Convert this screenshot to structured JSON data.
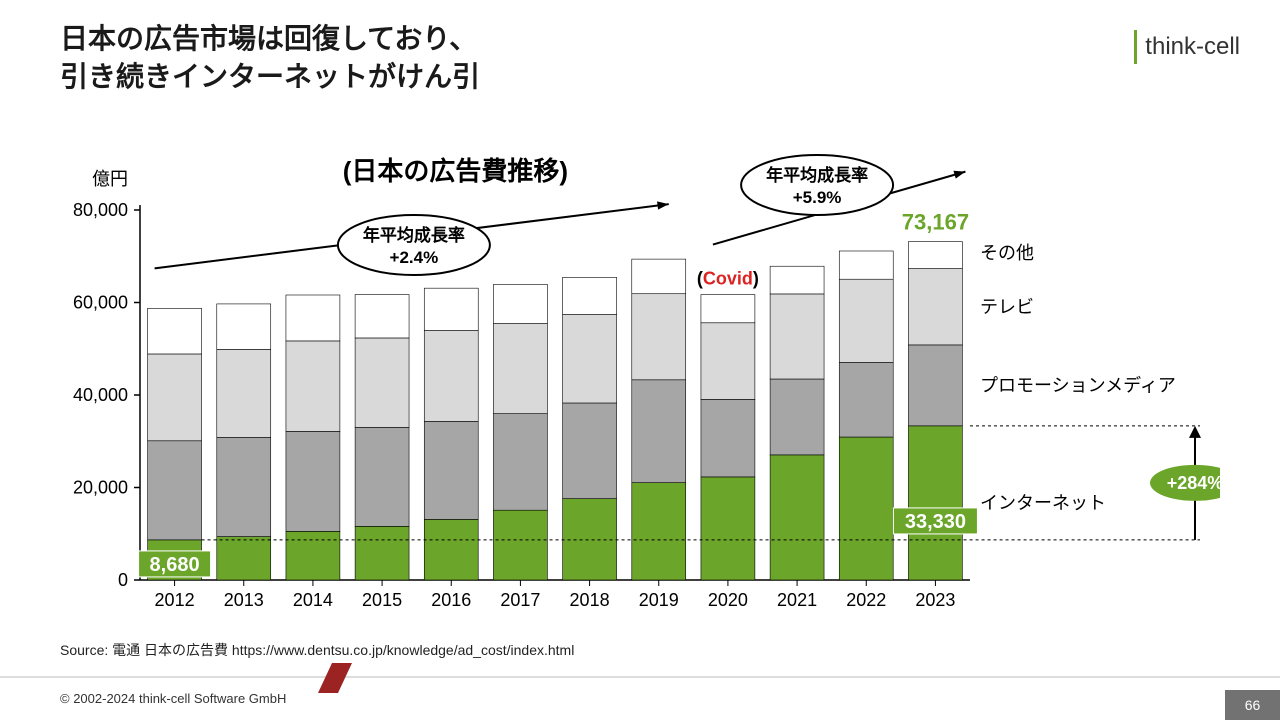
{
  "title_line1": "日本の広告市場は回復しており、",
  "title_line2": "引き続きインターネットがけん引",
  "logo_text": "think-cell",
  "source": "Source:  電通 日本の広告費 https://www.dentsu.co.jp/knowledge/ad_cost/index.html",
  "copyright": "© 2002-2024 think-cell Software GmbH",
  "page_num": "66",
  "chart": {
    "type": "stacked-bar",
    "subtitle": "(日本の広告費推移)",
    "y_label": "億円",
    "covid_label": "(Covid)",
    "years": [
      "2012",
      "2013",
      "2014",
      "2015",
      "2016",
      "2017",
      "2018",
      "2019",
      "2020",
      "2021",
      "2022",
      "2023"
    ],
    "series": [
      {
        "key": "internet",
        "label": "インターネット",
        "color": "#6ba52a"
      },
      {
        "key": "promo",
        "label": "プロモーションメディア",
        "color": "#a6a6a6"
      },
      {
        "key": "tv",
        "label": "テレビ",
        "color": "#d9d9d9"
      },
      {
        "key": "other",
        "label": "その他",
        "color": "#ffffff"
      }
    ],
    "data": {
      "internet": [
        8680,
        9381,
        10519,
        11594,
        13100,
        15094,
        17589,
        21048,
        22290,
        27052,
        30912,
        33330
      ],
      "promo": [
        21424,
        21446,
        21610,
        21417,
        21184,
        20875,
        20685,
        22239,
        16768,
        16408,
        16124,
        17500
      ],
      "tv": [
        18770,
        19023,
        19564,
        19323,
        19657,
        19478,
        19123,
        18612,
        16559,
        18393,
        18000,
        16500
      ],
      "other": [
        9867,
        9843,
        9929,
        9376,
        9157,
        8463,
        8047,
        7482,
        6098,
        5990,
        6100,
        5837
      ]
    },
    "y": {
      "min": 0,
      "max": 80000,
      "step": 20000
    },
    "first_value_label": "8,680",
    "last_value_label": "33,330",
    "total_label": "73,167",
    "growth_badge": "+284%",
    "cagr1": {
      "label_l1": "年平均成長率",
      "label_l2": "+2.4%"
    },
    "cagr2": {
      "label_l1": "年平均成長率",
      "label_l2": "+5.9%"
    },
    "styling": {
      "axis_color": "#000",
      "grid": "off",
      "bar_gap_ratio": 0.22,
      "axis_fontsize": 18,
      "subtitle_fontsize": 26,
      "subtitle_weight": 700,
      "series_label_fontsize": 18,
      "value_label_bg": "#6ba52a",
      "value_label_color": "#fff",
      "total_label_color": "#6ba52a",
      "total_label_fontsize": 22,
      "total_label_weight": 700,
      "covid_color": "#d22",
      "badge_bg": "#6ba52a",
      "badge_color": "#fff",
      "badge_fontsize": 18
    }
  }
}
